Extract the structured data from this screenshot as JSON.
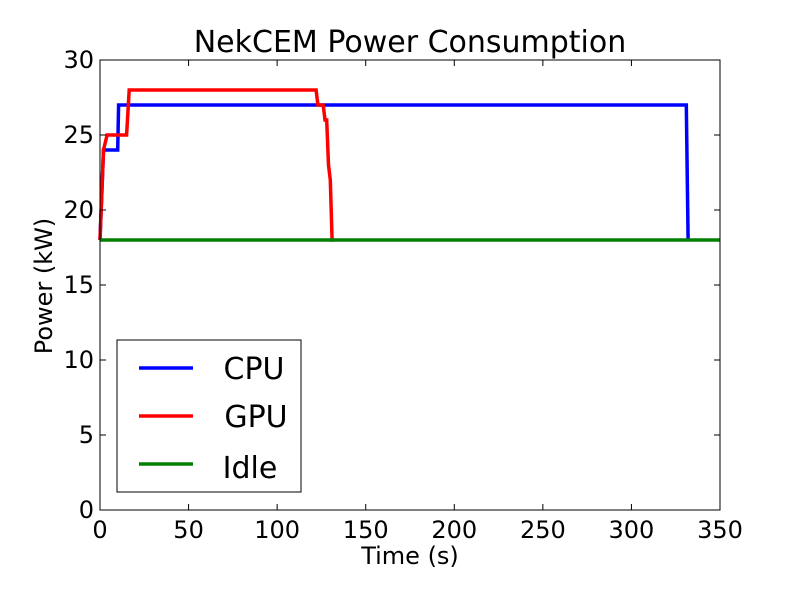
{
  "chart_data": {
    "type": "line",
    "title": "NekCEM Power Consumption",
    "xlabel": "Time (s)",
    "ylabel": "Power (kW)",
    "xlim": [
      0,
      350
    ],
    "ylim": [
      0,
      30
    ],
    "xticks": [
      0,
      50,
      100,
      150,
      200,
      250,
      300,
      350
    ],
    "yticks": [
      0,
      5,
      10,
      15,
      20,
      25,
      30
    ],
    "grid": false,
    "legend_position": "lower-left",
    "series": [
      {
        "name": "CPU",
        "color": "#0000ff",
        "x": [
          0,
          2,
          3,
          10,
          10.5,
          331,
          332
        ],
        "y": [
          18,
          24,
          24,
          24,
          27,
          27,
          18
        ]
      },
      {
        "name": "GPU",
        "color": "#ff0000",
        "x": [
          0,
          2,
          4,
          15,
          16.5,
          122,
          123,
          126,
          127,
          128,
          129,
          130,
          131,
          132
        ],
        "y": [
          18,
          24,
          25,
          25,
          28,
          28,
          27,
          27,
          26,
          26,
          23,
          22,
          18,
          18
        ]
      },
      {
        "name": "Idle",
        "color": "#008000",
        "x": [
          0,
          350
        ],
        "y": [
          18,
          18
        ]
      }
    ]
  }
}
